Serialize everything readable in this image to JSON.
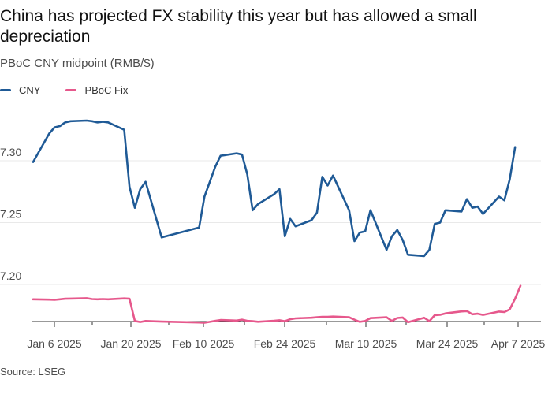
{
  "title": "China has projected FX stability this year but has allowed a small depreciation",
  "subtitle": "PBoC CNY midpoint (RMB/$)",
  "source": "Source: LSEG",
  "colors": {
    "CNY": "#1f5a96",
    "PBoC Fix": "#e6588c",
    "grid": "#e9e9e9",
    "axis": "#333333"
  },
  "chart_data": {
    "type": "line",
    "x_tick_labels": [
      "Jan 6 2025",
      "Jan 20 2025",
      "Feb 10 2025",
      "Feb 24 2025",
      "Mar 10 2025",
      "Mar 24 2025",
      "Apr 7 2025"
    ],
    "y_tick_labels": [
      "7.30",
      "7.25",
      "7.20"
    ],
    "ylim": [
      7.165,
      7.34
    ],
    "xlim": [
      "2025-01-03",
      "2025-04-08"
    ],
    "grid": true,
    "legend_position": "top-left",
    "series": [
      {
        "name": "CNY",
        "points": [
          [
            "2025-01-03",
            7.299
          ],
          [
            "2025-01-06",
            7.322
          ],
          [
            "2025-01-07",
            7.327
          ],
          [
            "2025-01-08",
            7.328
          ],
          [
            "2025-01-09",
            7.331
          ],
          [
            "2025-01-10",
            7.332
          ],
          [
            "2025-01-13",
            7.3325
          ],
          [
            "2025-01-14",
            7.332
          ],
          [
            "2025-01-15",
            7.331
          ],
          [
            "2025-01-16",
            7.3315
          ],
          [
            "2025-01-17",
            7.331
          ],
          [
            "2025-01-20",
            7.325
          ],
          [
            "2025-01-21",
            7.279
          ],
          [
            "2025-01-22",
            7.262
          ],
          [
            "2025-01-23",
            7.277
          ],
          [
            "2025-01-24",
            7.283
          ],
          [
            "2025-01-27",
            7.238
          ],
          [
            "2025-02-03",
            7.246
          ],
          [
            "2025-02-04",
            7.271
          ],
          [
            "2025-02-05",
            7.283
          ],
          [
            "2025-02-06",
            7.295
          ],
          [
            "2025-02-07",
            7.304
          ],
          [
            "2025-02-10",
            7.306
          ],
          [
            "2025-02-11",
            7.305
          ],
          [
            "2025-02-12",
            7.289
          ],
          [
            "2025-02-13",
            7.26
          ],
          [
            "2025-02-14",
            7.265
          ],
          [
            "2025-02-17",
            7.273
          ],
          [
            "2025-02-18",
            7.277
          ],
          [
            "2025-02-19",
            7.239
          ],
          [
            "2025-02-20",
            7.253
          ],
          [
            "2025-02-21",
            7.247
          ],
          [
            "2025-02-24",
            7.252
          ],
          [
            "2025-02-25",
            7.258
          ],
          [
            "2025-02-26",
            7.287
          ],
          [
            "2025-02-27",
            7.28
          ],
          [
            "2025-02-28",
            7.288
          ],
          [
            "2025-03-03",
            7.26
          ],
          [
            "2025-03-04",
            7.235
          ],
          [
            "2025-03-05",
            7.242
          ],
          [
            "2025-03-06",
            7.243
          ],
          [
            "2025-03-07",
            7.26
          ],
          [
            "2025-03-10",
            7.228
          ],
          [
            "2025-03-11",
            7.239
          ],
          [
            "2025-03-12",
            7.244
          ],
          [
            "2025-03-13",
            7.236
          ],
          [
            "2025-03-14",
            7.224
          ],
          [
            "2025-03-17",
            7.223
          ],
          [
            "2025-03-18",
            7.228
          ],
          [
            "2025-03-19",
            7.249
          ],
          [
            "2025-03-20",
            7.25
          ],
          [
            "2025-03-21",
            7.26
          ],
          [
            "2025-03-24",
            7.259
          ],
          [
            "2025-03-25",
            7.269
          ],
          [
            "2025-03-26",
            7.262
          ],
          [
            "2025-03-27",
            7.263
          ],
          [
            "2025-03-28",
            7.257
          ],
          [
            "2025-03-31",
            7.271
          ],
          [
            "2025-04-01",
            7.268
          ],
          [
            "2025-04-02",
            7.285
          ],
          [
            "2025-04-03",
            7.311
          ]
        ]
      },
      {
        "name": "PBoC Fix",
        "points": [
          [
            "2025-01-03",
            7.188
          ],
          [
            "2025-01-06",
            7.1878
          ],
          [
            "2025-01-07",
            7.1876
          ],
          [
            "2025-01-08",
            7.188
          ],
          [
            "2025-01-09",
            7.1885
          ],
          [
            "2025-01-10",
            7.1886
          ],
          [
            "2025-01-13",
            7.1889
          ],
          [
            "2025-01-14",
            7.1882
          ],
          [
            "2025-01-15",
            7.188
          ],
          [
            "2025-01-16",
            7.1882
          ],
          [
            "2025-01-17",
            7.188
          ],
          [
            "2025-01-20",
            7.1887
          ],
          [
            "2025-01-21",
            7.1885
          ],
          [
            "2025-01-22",
            7.1705
          ],
          [
            "2025-01-23",
            7.1697
          ],
          [
            "2025-01-24",
            7.1705
          ],
          [
            "2025-01-27",
            7.17
          ],
          [
            "2025-02-03",
            7.1693
          ],
          [
            "2025-02-04",
            7.1691
          ],
          [
            "2025-02-05",
            7.1698
          ],
          [
            "2025-02-06",
            7.1706
          ],
          [
            "2025-02-07",
            7.1713
          ],
          [
            "2025-02-10",
            7.1708
          ],
          [
            "2025-02-11",
            7.1716
          ],
          [
            "2025-02-12",
            7.1706
          ],
          [
            "2025-02-13",
            7.1703
          ],
          [
            "2025-02-14",
            7.1699
          ],
          [
            "2025-02-17",
            7.1707
          ],
          [
            "2025-02-18",
            7.1711
          ],
          [
            "2025-02-19",
            7.1703
          ],
          [
            "2025-02-20",
            7.1719
          ],
          [
            "2025-02-21",
            7.1726
          ],
          [
            "2025-02-24",
            7.1731
          ],
          [
            "2025-02-25",
            7.1735
          ],
          [
            "2025-02-26",
            7.1738
          ],
          [
            "2025-02-27",
            7.1738
          ],
          [
            "2025-02-28",
            7.1741
          ],
          [
            "2025-03-03",
            7.1735
          ],
          [
            "2025-03-04",
            7.1715
          ],
          [
            "2025-03-05",
            7.1698
          ],
          [
            "2025-03-06",
            7.1705
          ],
          [
            "2025-03-07",
            7.1728
          ],
          [
            "2025-03-10",
            7.1735
          ],
          [
            "2025-03-11",
            7.1705
          ],
          [
            "2025-03-12",
            7.1729
          ],
          [
            "2025-03-13",
            7.1733
          ],
          [
            "2025-03-14",
            7.1695
          ],
          [
            "2025-03-17",
            7.1731
          ],
          [
            "2025-03-18",
            7.1703
          ],
          [
            "2025-03-19",
            7.1752
          ],
          [
            "2025-03-20",
            7.1755
          ],
          [
            "2025-03-21",
            7.1766
          ],
          [
            "2025-03-24",
            7.1782
          ],
          [
            "2025-03-25",
            7.1785
          ],
          [
            "2025-03-26",
            7.1759
          ],
          [
            "2025-03-27",
            7.1764
          ],
          [
            "2025-03-28",
            7.1754
          ],
          [
            "2025-03-31",
            7.1781
          ],
          [
            "2025-04-01",
            7.1777
          ],
          [
            "2025-04-02",
            7.1799
          ],
          [
            "2025-04-03",
            7.1886
          ],
          [
            "2025-04-04",
            7.1989
          ]
        ]
      }
    ]
  }
}
